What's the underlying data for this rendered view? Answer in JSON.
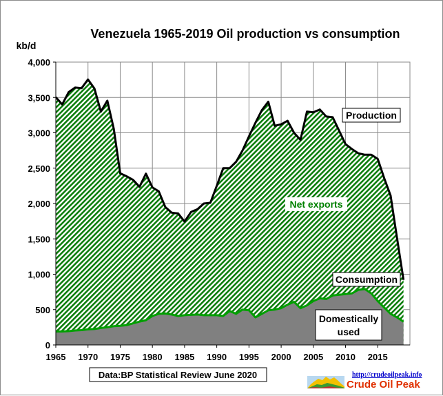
{
  "chart_data": {
    "type": "area",
    "title": "Venezuela 1965-2019 Oil production  vs consumption",
    "ylabel": "kb/d",
    "xlabel": "",
    "xlim": [
      1965,
      2020
    ],
    "ylim": [
      0,
      4000
    ],
    "yticks": [
      0,
      500,
      1000,
      1500,
      2000,
      2500,
      3000,
      3500,
      4000
    ],
    "ytick_labels": [
      "0",
      "500",
      "1,000",
      "1,500",
      "2,000",
      "2,500",
      "3,000",
      "3,500",
      "4,000"
    ],
    "xticks": [
      1965,
      1970,
      1975,
      1980,
      1985,
      1990,
      1995,
      2000,
      2005,
      2010,
      2015
    ],
    "xtick_labels": [
      "1965",
      "1970",
      "1975",
      "1980",
      "1985",
      "1990",
      "1995",
      "2000",
      "2005",
      "2010",
      "2015"
    ],
    "grid": true,
    "x": [
      1965,
      1966,
      1967,
      1968,
      1969,
      1970,
      1971,
      1972,
      1973,
      1974,
      1975,
      1976,
      1977,
      1978,
      1979,
      1980,
      1981,
      1982,
      1983,
      1984,
      1985,
      1986,
      1987,
      1988,
      1989,
      1990,
      1991,
      1992,
      1993,
      1994,
      1995,
      1996,
      1997,
      1998,
      1999,
      2000,
      2001,
      2002,
      2003,
      2004,
      2005,
      2006,
      2007,
      2008,
      2009,
      2010,
      2011,
      2012,
      2013,
      2014,
      2015,
      2016,
      2017,
      2018,
      2019
    ],
    "series": [
      {
        "name": "Production",
        "values": [
          3503,
          3401,
          3576,
          3640,
          3631,
          3754,
          3625,
          3300,
          3455,
          3060,
          2426,
          2385,
          2335,
          2236,
          2422,
          2228,
          2172,
          1950,
          1870,
          1860,
          1744,
          1880,
          1920,
          2000,
          2010,
          2250,
          2500,
          2500,
          2590,
          2750,
          2950,
          3140,
          3320,
          3440,
          3100,
          3120,
          3170,
          3000,
          2900,
          3300,
          3290,
          3330,
          3230,
          3220,
          3030,
          2840,
          2770,
          2710,
          2690,
          2690,
          2630,
          2360,
          2110,
          1510,
          920
        ],
        "color": "#000000"
      },
      {
        "name": "Consumption",
        "values": [
          190,
          190,
          195,
          205,
          210,
          220,
          225,
          240,
          250,
          265,
          270,
          280,
          305,
          330,
          350,
          410,
          440,
          445,
          430,
          410,
          420,
          425,
          430,
          420,
          420,
          420,
          410,
          480,
          440,
          500,
          490,
          390,
          440,
          490,
          500,
          520,
          570,
          610,
          520,
          560,
          620,
          660,
          650,
          700,
          710,
          720,
          730,
          780,
          790,
          730,
          620,
          530,
          440,
          390,
          330
        ],
        "color": "#00a000"
      }
    ],
    "annotations": {
      "production": "Production",
      "net_exports": "Net exports",
      "consumption": "Consumption",
      "domestic_line1": "Domestically",
      "domestic_line2": "used",
      "source": "Data:BP Statistical Review June 2020"
    },
    "colors": {
      "net_exports_fill": "#0b7d0b",
      "hatch_background": "#ffffff",
      "domestic_fill": "#808080",
      "production_line": "#000000",
      "consumption_line": "#00a000",
      "net_exports_text": "#008000"
    }
  },
  "logo": {
    "url_text": "http://crudeoilpeak.info",
    "name": "Crude Oil Peak",
    "url_color": "#0000cc",
    "name_color": "#e03000"
  }
}
